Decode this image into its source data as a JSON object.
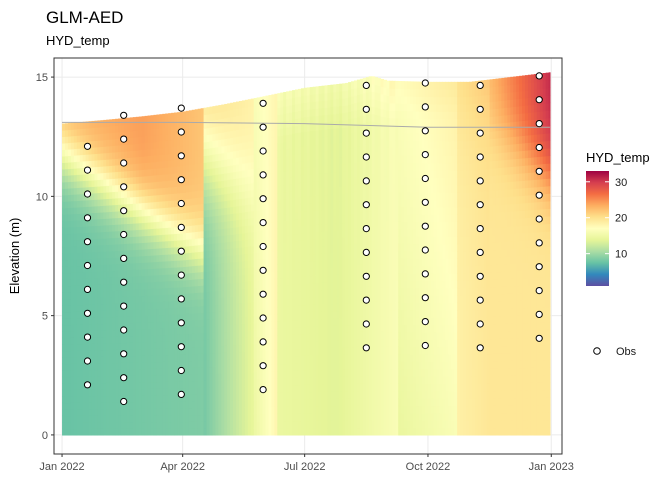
{
  "chart_data": {
    "type": "heatmap",
    "title": "GLM-AED",
    "subtitle": "HYD_temp",
    "xlabel": "",
    "ylabel": "Elevation (m)",
    "x_ticks": [
      "Jan 2022",
      "Apr 2022",
      "Jul 2022",
      "Oct 2022",
      "Jan 2023"
    ],
    "x_tick_dates": [
      "2022-01-01",
      "2022-04-01",
      "2022-07-01",
      "2022-10-01",
      "2023-01-01"
    ],
    "x_range": [
      "2021-12-26",
      "2023-01-09"
    ],
    "y_ticks": [
      0,
      5,
      10,
      15
    ],
    "ylim": [
      -0.8,
      15.8
    ],
    "grid": true,
    "colorbar": {
      "title": "HYD_temp",
      "ticks": [
        10,
        20,
        30
      ],
      "range": [
        1,
        33
      ],
      "palette": [
        "#5e4fa2",
        "#3288bd",
        "#66c2a5",
        "#abdda4",
        "#e6f598",
        "#ffffbf",
        "#fee08b",
        "#fdae61",
        "#f46d43",
        "#d53e4f",
        "#9e0142"
      ]
    },
    "legend": {
      "label": "Obs",
      "placement": "right"
    },
    "surface": [
      {
        "date": "2022-01-01",
        "value": 13.05
      },
      {
        "date": "2022-02-01",
        "value": 13.2
      },
      {
        "date": "2022-03-01",
        "value": 13.35
      },
      {
        "date": "2022-04-01",
        "value": 13.55
      },
      {
        "date": "2022-05-01",
        "value": 13.85
      },
      {
        "date": "2022-06-01",
        "value": 14.2
      },
      {
        "date": "2022-07-01",
        "value": 14.55
      },
      {
        "date": "2022-08-01",
        "value": 14.75
      },
      {
        "date": "2022-08-20",
        "value": 15.05
      },
      {
        "date": "2022-09-01",
        "value": 14.85
      },
      {
        "date": "2022-10-01",
        "value": 14.8
      },
      {
        "date": "2022-11-01",
        "value": 14.8
      },
      {
        "date": "2022-12-01",
        "value": 15.0
      },
      {
        "date": "2022-12-31",
        "value": 15.2
      }
    ],
    "reference_line": [
      {
        "date": "2022-01-01",
        "value": 13.1
      },
      {
        "date": "2022-04-01",
        "value": 13.1
      },
      {
        "date": "2022-07-01",
        "value": 13.05
      },
      {
        "date": "2022-10-01",
        "value": 12.9
      },
      {
        "date": "2022-12-31",
        "value": 12.9
      }
    ],
    "observations": [
      {
        "date": "2022-01-20",
        "elevations": [
          12.1,
          11.1,
          10.1,
          9.1,
          8.1,
          7.1,
          6.1,
          5.1,
          4.1,
          3.1,
          2.1
        ]
      },
      {
        "date": "2022-02-16",
        "elevations": [
          13.4,
          12.4,
          11.4,
          10.4,
          9.4,
          8.4,
          7.4,
          6.4,
          5.4,
          4.4,
          3.4,
          2.4,
          1.4
        ]
      },
      {
        "date": "2022-03-31",
        "elevations": [
          13.7,
          12.7,
          11.7,
          10.7,
          9.7,
          8.7,
          7.7,
          6.7,
          5.7,
          4.7,
          3.7,
          2.7,
          1.7
        ]
      },
      {
        "date": "2022-05-31",
        "elevations": [
          13.9,
          12.9,
          11.9,
          10.9,
          9.9,
          8.9,
          7.9,
          6.9,
          5.9,
          4.9,
          3.9,
          2.9,
          1.9
        ]
      },
      {
        "date": "2022-08-16",
        "elevations": [
          14.65,
          13.65,
          12.65,
          11.65,
          10.65,
          9.65,
          8.65,
          7.65,
          6.65,
          5.65,
          4.65,
          3.65
        ]
      },
      {
        "date": "2022-09-29",
        "elevations": [
          14.75,
          13.75,
          12.75,
          11.75,
          10.75,
          9.75,
          8.75,
          7.75,
          6.75,
          5.75,
          4.75,
          3.75
        ]
      },
      {
        "date": "2022-11-09",
        "elevations": [
          14.65,
          13.65,
          12.65,
          11.65,
          10.65,
          9.65,
          8.65,
          7.65,
          6.65,
          5.65,
          4.65,
          3.65
        ]
      },
      {
        "date": "2022-12-23",
        "elevations": [
          15.05,
          14.05,
          13.05,
          12.05,
          11.05,
          10.05,
          9.05,
          8.05,
          7.05,
          6.05,
          5.05,
          4.05
        ]
      }
    ],
    "colors": {
      "reference_line": "#aaaaaa",
      "obs_stroke": "#000000",
      "obs_fill": "#ffffff"
    }
  }
}
